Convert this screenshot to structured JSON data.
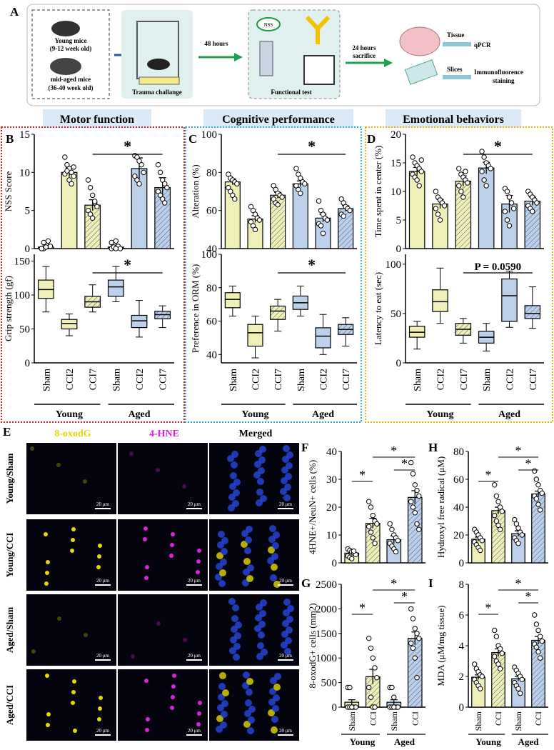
{
  "panel_letters": [
    "A",
    "B",
    "C",
    "D",
    "E",
    "F",
    "G",
    "H",
    "I"
  ],
  "schematic": {
    "young_mice": "Young mice",
    "young_age": "(9-12 week old)",
    "aged_mice": "mid-aged mice",
    "aged_age": "(36-40 week old)",
    "trauma": "Trauma challange",
    "arrow1": "48 hours",
    "nss_badge": "NSS",
    "functional": "Functional test",
    "arrow2_line1": "24 hours",
    "arrow2_line2": "sacrifice",
    "tissue": "Tissue",
    "qpcr": "qPCR",
    "slices": "Slices",
    "immuno_line1": "Immunofluorence",
    "immuno_line2": "staining"
  },
  "section_headers": [
    "Motor function",
    "Cognitive performance",
    "Emotional behaviors"
  ],
  "colors": {
    "young_fill": "#eef0b8",
    "aged_fill": "#bcd0ea",
    "motor_border": "#e02020",
    "cognitive_border": "#20b8d8",
    "emotional_border": "#f0b400",
    "schematic_bg": "#dff0ee",
    "header_bg": "#dce9f6"
  },
  "behavior_groups": [
    "Sham",
    "CCI2",
    "CCI7",
    "Sham",
    "CCI2",
    "CCI7"
  ],
  "group_labels": [
    "Young",
    "Aged"
  ],
  "micro": {
    "col_titles": [
      "8-oxodG",
      "4-HNE",
      "Merged"
    ],
    "row_labels": [
      "Young/Sham",
      "Young/CCI",
      "Aged/Sham",
      "Aged/CCI"
    ],
    "scale": "20 μm"
  },
  "star": "*",
  "p_value_label": "P = 0.0590",
  "chart_data": [
    {
      "panel": "B",
      "type": "bar",
      "ylabel": "NSS Score",
      "ylim": [
        0,
        15
      ],
      "yticks": [
        0,
        5,
        10,
        15
      ],
      "categories": [
        "Sham",
        "CCI2",
        "CCI7",
        "Sham",
        "CCI2",
        "CCI7"
      ],
      "values": [
        0.2,
        10.0,
        5.7,
        0.2,
        10.5,
        8.0
      ],
      "errors": [
        0.3,
        0.6,
        0.7,
        0.3,
        1.4,
        1.3
      ],
      "points": [
        [
          0,
          0,
          0.5,
          1,
          0.3,
          0,
          0.8,
          0.2
        ],
        [
          12,
          11,
          10.5,
          10,
          9.5,
          9.8,
          10.2,
          9,
          8.5,
          10.7
        ],
        [
          9,
          8,
          7,
          6,
          5.5,
          5,
          4.5,
          4,
          6.2
        ],
        [
          0,
          0.5,
          1,
          0.3,
          0,
          0.8,
          0.2,
          0
        ],
        [
          12.2,
          12,
          11.5,
          11,
          10,
          9.5,
          9,
          8.5
        ],
        [
          11,
          10,
          9,
          8.5,
          8,
          7.5,
          7,
          6.5,
          6
        ]
      ],
      "significance": {
        "from": 2,
        "to": 5,
        "label": "*"
      }
    },
    {
      "panel": "B2",
      "type": "box",
      "ylabel": "Grip strength (gf)",
      "ylim": [
        0,
        160
      ],
      "yticks": [
        0,
        50,
        100,
        150
      ],
      "categories": [
        "Sham",
        "CCI2",
        "CCI7",
        "Sham",
        "CCI2",
        "CCI7"
      ],
      "boxes": [
        [
          75,
          95,
          108,
          122,
          142
        ],
        [
          40,
          50,
          58,
          64,
          72
        ],
        [
          75,
          82,
          90,
          98,
          115
        ],
        [
          90,
          98,
          112,
          122,
          142
        ],
        [
          38,
          52,
          62,
          70,
          92
        ],
        [
          52,
          65,
          71,
          76,
          84
        ]
      ],
      "significance": {
        "from": 2,
        "to": 5,
        "label": "*"
      }
    },
    {
      "panel": "C",
      "type": "bar",
      "ylabel": "Alteration (%)",
      "ylim": [
        40,
        100
      ],
      "yticks": [
        40,
        60,
        80,
        100
      ],
      "categories": [
        "Sham",
        "CCI2",
        "CCI7",
        "Sham",
        "CCI2",
        "CCI7"
      ],
      "values": [
        75,
        55.5,
        68,
        74,
        56,
        61
      ],
      "errors": [
        1.5,
        1.8,
        1.5,
        1.5,
        2.0,
        1.5
      ],
      "points": [
        [
          79,
          77,
          76,
          75,
          74,
          72,
          70,
          68,
          66
        ],
        [
          62,
          60,
          58,
          56,
          55,
          54,
          52,
          50
        ],
        [
          73,
          71,
          69,
          68,
          67,
          66,
          64,
          63
        ],
        [
          82,
          79,
          77,
          75,
          74,
          73,
          71,
          69
        ],
        [
          65,
          60,
          58,
          56,
          55,
          53,
          52,
          48
        ],
        [
          66,
          64,
          62,
          61,
          60,
          58,
          57
        ]
      ],
      "significance": {
        "from": 2,
        "to": 5,
        "label": "*"
      }
    },
    {
      "panel": "C2",
      "type": "box",
      "ylabel": "Preference in ORM (%)",
      "ylim": [
        35,
        100
      ],
      "yticks": [
        40,
        60,
        80,
        100
      ],
      "categories": [
        "Sham",
        "CCI2",
        "CCI7",
        "Sham",
        "CCI2",
        "CCI7"
      ],
      "boxes": [
        [
          63,
          68,
          73,
          77,
          81
        ],
        [
          38,
          45,
          53,
          58,
          63
        ],
        [
          54,
          61,
          66,
          69,
          73
        ],
        [
          63,
          67,
          71,
          75,
          81
        ],
        [
          40,
          44,
          51,
          56,
          64
        ],
        [
          45,
          52,
          55,
          58,
          62
        ]
      ],
      "significance": {
        "from": 2,
        "to": 5,
        "label": "*"
      }
    },
    {
      "panel": "D",
      "type": "bar",
      "ylabel": "Time spent in center (%)",
      "ylim": [
        0,
        20
      ],
      "yticks": [
        0,
        5,
        10,
        15,
        20
      ],
      "categories": [
        "Sham",
        "CCI2",
        "CCI7",
        "Sham",
        "CCI2",
        "CCI7"
      ],
      "values": [
        13.5,
        7.8,
        11.8,
        14.1,
        7.8,
        8.3
      ],
      "errors": [
        0.7,
        0.8,
        0.9,
        1.0,
        1.5,
        0.7
      ],
      "points": [
        [
          16,
          15,
          14.5,
          14,
          13.5,
          13,
          12.5,
          12,
          11,
          15.5
        ],
        [
          10,
          9,
          8.5,
          8,
          7.5,
          7,
          6,
          5
        ],
        [
          14,
          13,
          12.5,
          12,
          11.5,
          11,
          10,
          9,
          13.5
        ],
        [
          17,
          16,
          15,
          14.5,
          14,
          13.5,
          12,
          11
        ],
        [
          10.5,
          10,
          9,
          8,
          7,
          6.5,
          5,
          4
        ],
        [
          10,
          9.5,
          9,
          8.5,
          8,
          7.5,
          7,
          6.5
        ]
      ],
      "significance": {
        "from": 2,
        "to": 5,
        "label": "*"
      }
    },
    {
      "panel": "D2",
      "type": "box",
      "ylabel": "Latency to eat (sec)",
      "ylim": [
        0,
        110
      ],
      "yticks": [
        0,
        50,
        100
      ],
      "categories": [
        "Sham",
        "CCI2",
        "CCI7",
        "Sham",
        "CCI2",
        "CCI7"
      ],
      "boxes": [
        [
          14,
          26,
          31,
          37,
          42
        ],
        [
          40,
          52,
          62,
          74,
          96
        ],
        [
          20,
          28,
          34,
          40,
          45
        ],
        [
          12,
          20,
          26,
          32,
          40
        ],
        [
          36,
          42,
          68,
          85,
          93
        ],
        [
          35,
          45,
          50,
          58,
          77
        ]
      ],
      "significance": {
        "from": 2,
        "to": 5,
        "label": "P = 0.0590"
      }
    },
    {
      "panel": "F",
      "type": "bar",
      "ylabel": "4HNE+/NeuN+ cells (%)",
      "ylim": [
        0,
        40
      ],
      "yticks": [
        0,
        10,
        20,
        30,
        40
      ],
      "categories": [
        "Sham",
        "CCI",
        "Sham",
        "CCI"
      ],
      "values": [
        3.5,
        14.2,
        8.3,
        23.5
      ],
      "errors": [
        0.6,
        1.8,
        1.4,
        2.4
      ],
      "points": [
        [
          5,
          4.5,
          4,
          3.5,
          3,
          2.5,
          2,
          1.5,
          4.2
        ],
        [
          22,
          20,
          17,
          15,
          14,
          13,
          11,
          9,
          7
        ],
        [
          14,
          12,
          10,
          9,
          8,
          7,
          6,
          5,
          4
        ],
        [
          36,
          32,
          28,
          26,
          24,
          22,
          20,
          18,
          14,
          12
        ]
      ]
    },
    {
      "panel": "G",
      "type": "bar",
      "ylabel": "8-oxodG+ cells (mm2)",
      "ylim": [
        0,
        2500
      ],
      "yticks": [
        0,
        500,
        1000,
        1500,
        2000,
        2500
      ],
      "categories": [
        "Sham",
        "CCI",
        "Sham",
        "CCI"
      ],
      "xgroups": [
        "Young",
        "Aged"
      ],
      "values": [
        100,
        620,
        100,
        1400
      ],
      "errors": [
        50,
        150,
        50,
        130
      ],
      "points": [
        [
          400,
          400,
          0,
          0,
          0,
          0,
          0,
          0
        ],
        [
          1400,
          1200,
          1000,
          800,
          600,
          400,
          200,
          0,
          0
        ],
        [
          400,
          400,
          200,
          0,
          0,
          0,
          0,
          0
        ],
        [
          2000,
          1800,
          1600,
          1500,
          1400,
          1300,
          1200,
          1000,
          600
        ]
      ]
    },
    {
      "panel": "H",
      "type": "bar",
      "ylabel": "Hydroxyl free radical (μM)",
      "ylim": [
        0,
        80
      ],
      "yticks": [
        0,
        20,
        40,
        60,
        80
      ],
      "categories": [
        "Sham",
        "CCI",
        "Sham",
        "CCI"
      ],
      "values": [
        17,
        37.5,
        21,
        49.5
      ],
      "errors": [
        1.5,
        2.5,
        2.0,
        2.0
      ],
      "points": [
        [
          24,
          22,
          20,
          18,
          16,
          15,
          13,
          11,
          9
        ],
        [
          56,
          48,
          44,
          40,
          37,
          34,
          30,
          27,
          24
        ],
        [
          31,
          28,
          25,
          22,
          20,
          18,
          16,
          14
        ],
        [
          66,
          60,
          56,
          52,
          50,
          48,
          46,
          42,
          38
        ]
      ]
    },
    {
      "panel": "I",
      "type": "bar",
      "ylabel": "MDA (μM/mg tissue)",
      "ylim": [
        0,
        8
      ],
      "yticks": [
        0,
        2,
        4,
        6,
        8
      ],
      "categories": [
        "Sham",
        "CCI",
        "Sham",
        "CCI"
      ],
      "xgroups": [
        "Young",
        "Aged"
      ],
      "values": [
        1.95,
        3.55,
        1.85,
        4.35
      ],
      "errors": [
        0.15,
        0.25,
        0.15,
        0.25
      ],
      "points": [
        [
          2.8,
          2.5,
          2.3,
          2.1,
          2.0,
          1.8,
          1.6,
          1.4,
          1.2
        ],
        [
          5.0,
          4.6,
          4.0,
          3.8,
          3.5,
          3.3,
          3.0,
          2.8,
          2.5
        ],
        [
          2.6,
          2.4,
          2.2,
          2.0,
          1.8,
          1.6,
          1.4,
          1.2,
          0.9
        ],
        [
          6.0,
          5.4,
          5.0,
          4.6,
          4.3,
          4.1,
          3.9,
          3.6,
          3.2
        ]
      ]
    }
  ]
}
